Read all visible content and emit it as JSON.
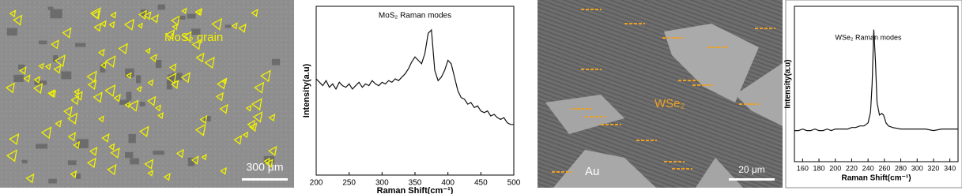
{
  "images": [
    {
      "labels": [
        "MoS₂ grain"
      ],
      "scale_bar": "300 μm"
    },
    {
      "labels": [
        "WSe₂",
        "Au"
      ],
      "scale_bar": "20 μm"
    }
  ],
  "chart_data": [
    {
      "type": "line",
      "title": "MoS₂ Raman modes",
      "x_label": "Raman Shift(cm⁻¹)",
      "y_label": "Intensity(a.u)",
      "x": [
        200,
        205,
        210,
        215,
        220,
        225,
        230,
        235,
        240,
        245,
        250,
        255,
        260,
        265,
        270,
        275,
        280,
        285,
        290,
        295,
        300,
        305,
        310,
        315,
        320,
        325,
        330,
        335,
        340,
        345,
        350,
        355,
        360,
        365,
        370,
        375,
        380,
        385,
        390,
        395,
        400,
        405,
        410,
        415,
        420,
        425,
        430,
        435,
        440,
        445,
        450,
        455,
        460,
        465,
        470,
        475,
        480,
        485,
        490,
        495,
        500
      ],
      "values": [
        57,
        55,
        53,
        56,
        52,
        54,
        51,
        55,
        53,
        52,
        54,
        51,
        53,
        55,
        52,
        54,
        53,
        56,
        54,
        53,
        55,
        54,
        56,
        55,
        57,
        56,
        58,
        60,
        63,
        67,
        70,
        68,
        66,
        72,
        84,
        86,
        62,
        56,
        58,
        62,
        68,
        66,
        58,
        50,
        46,
        45,
        42,
        43,
        40,
        41,
        38,
        37,
        38,
        35,
        36,
        34,
        33,
        34,
        31,
        30,
        30
      ],
      "color": "#111111",
      "xlim": [
        200,
        500
      ],
      "xticks": [
        200,
        250,
        300,
        350,
        400,
        450,
        500
      ],
      "ylim": [
        0,
        100
      ],
      "yticks": []
    },
    {
      "type": "line",
      "title": "WSe₂ Raman modes",
      "x_label": "Raman Shift(cm⁻¹)",
      "y_label": "Intensity(a.u)",
      "x": [
        150,
        155,
        160,
        165,
        170,
        175,
        180,
        185,
        190,
        195,
        200,
        205,
        210,
        215,
        220,
        225,
        230,
        235,
        240,
        243,
        245,
        247,
        249,
        251,
        254,
        257,
        259,
        262,
        265,
        270,
        280,
        290,
        300,
        310,
        320,
        330,
        340,
        350
      ],
      "values": [
        20,
        20,
        21,
        20,
        20,
        21,
        20,
        20,
        21,
        20,
        21,
        21,
        21,
        21,
        22,
        22,
        23,
        23,
        25,
        32,
        50,
        85,
        65,
        38,
        30,
        31,
        30,
        25,
        23,
        22,
        21,
        21,
        21,
        21,
        20,
        21,
        21,
        21
      ],
      "color": "#111111",
      "xlim": [
        150,
        350
      ],
      "xticks": [
        160,
        180,
        200,
        220,
        240,
        260,
        280,
        300,
        320,
        340
      ],
      "ylim": [
        0,
        100
      ],
      "yticks": []
    }
  ]
}
